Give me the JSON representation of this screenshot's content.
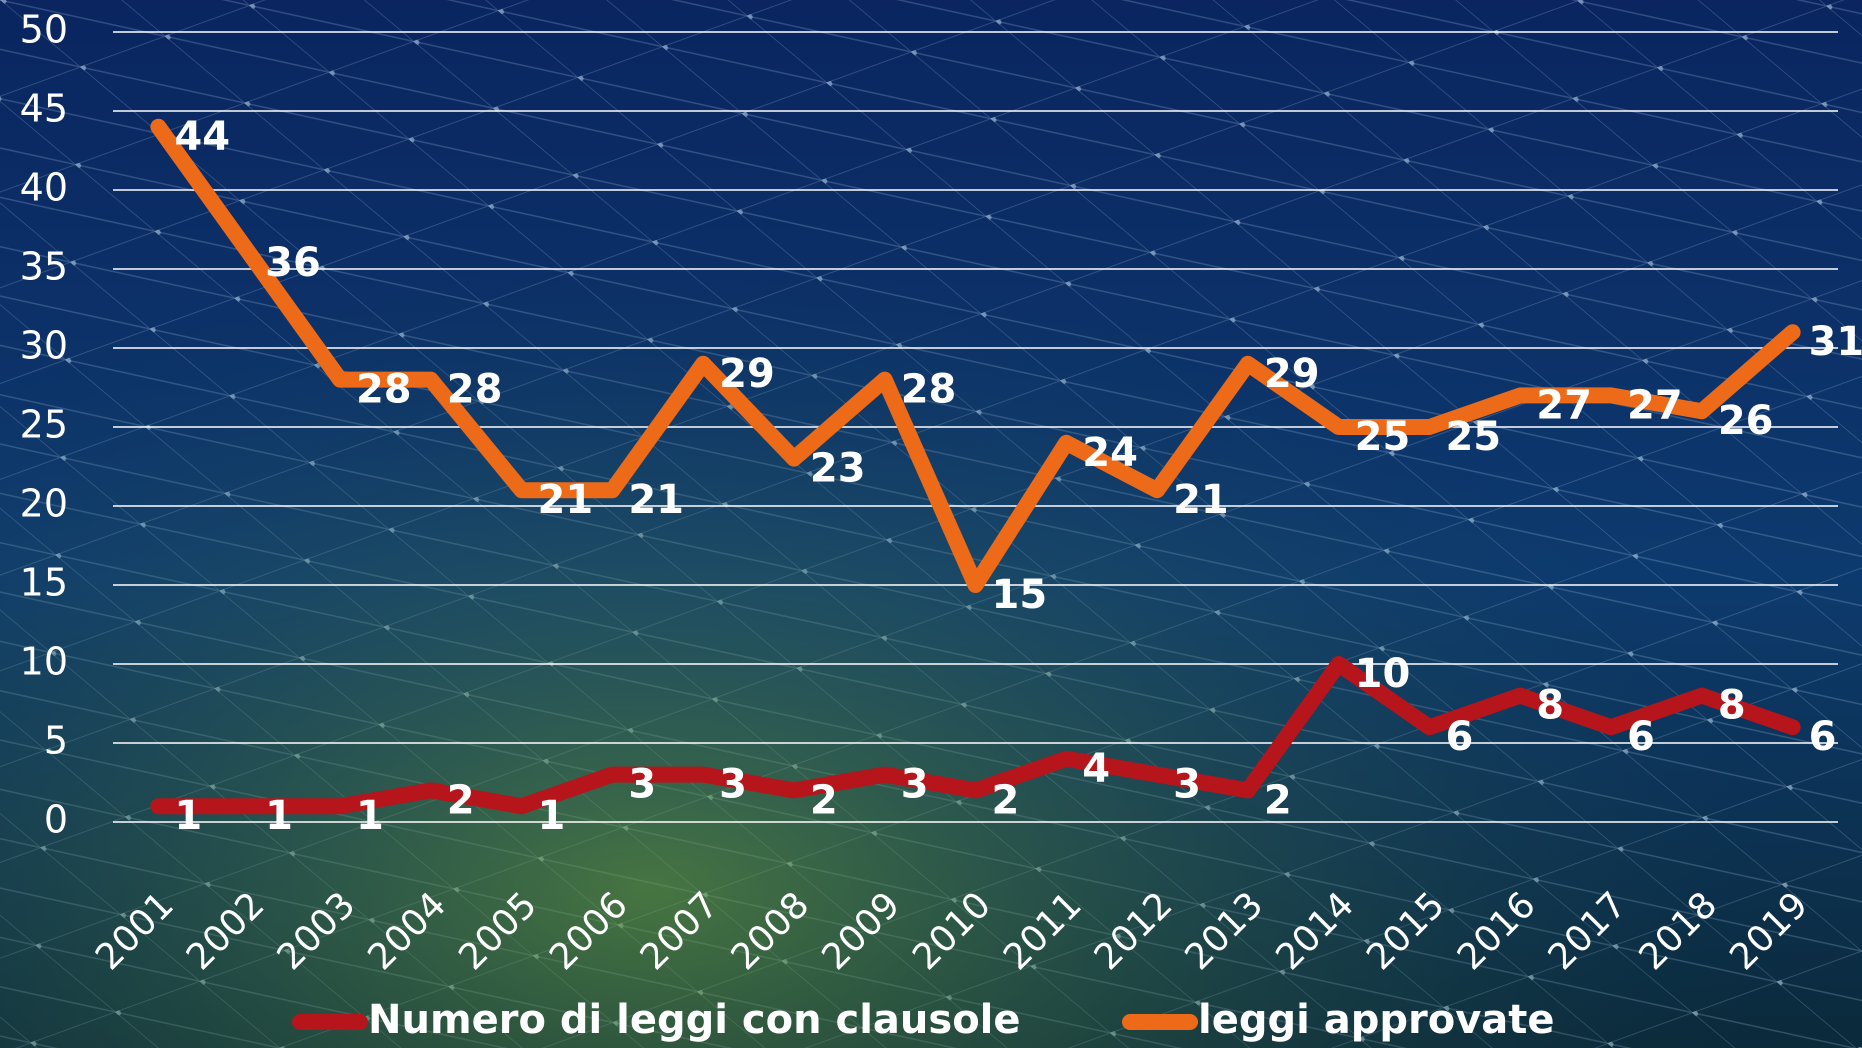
{
  "chart_data": {
    "type": "line",
    "categories": [
      "2001",
      "2002",
      "2003",
      "2004",
      "2005",
      "2006",
      "2007",
      "2008",
      "2009",
      "2010",
      "2011",
      "2012",
      "2013",
      "2014",
      "2015",
      "2016",
      "2017",
      "2018",
      "2019"
    ],
    "series": [
      {
        "name": "Numero di leggi con clausole",
        "color": "#b5151b",
        "values": [
          1,
          1,
          1,
          2,
          1,
          3,
          3,
          2,
          3,
          2,
          4,
          3,
          2,
          10,
          6,
          8,
          6,
          8,
          6
        ]
      },
      {
        "name": "leggi approvate",
        "color": "#ec6a18",
        "values": [
          44,
          36,
          28,
          28,
          21,
          21,
          29,
          23,
          28,
          15,
          24,
          21,
          29,
          25,
          25,
          27,
          27,
          26,
          31
        ]
      }
    ],
    "ylim": [
      0,
      50
    ],
    "yticks": [
      0,
      5,
      10,
      15,
      20,
      25,
      30,
      35,
      40,
      45,
      50
    ],
    "grid": true,
    "legend": "bottom"
  }
}
